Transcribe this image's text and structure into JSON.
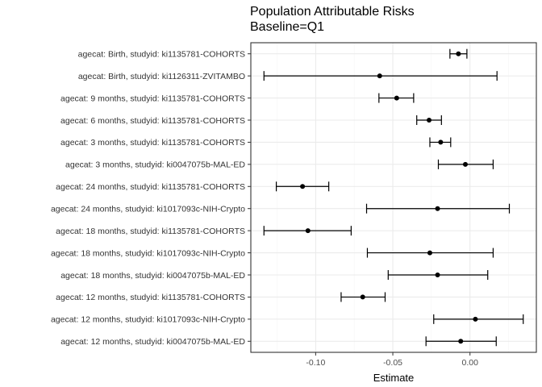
{
  "chart_data": {
    "type": "forest",
    "title": "Population Attributable Risks",
    "subtitle": "Baseline=Q1",
    "xlabel": "Estimate",
    "ylabel": "",
    "xlim": [
      -0.142,
      0.043
    ],
    "x_ticks": [
      -0.1,
      -0.05,
      0.0
    ],
    "x_tick_labels": [
      "-0.10",
      "-0.05",
      "0.00"
    ],
    "grid": true,
    "categories": [
      "agecat: Birth, studyid: ki1135781-COHORTS",
      "agecat: Birth, studyid: ki1126311-ZVITAMBO",
      "agecat: 9 months, studyid: ki1135781-COHORTS",
      "agecat: 6 months, studyid: ki1135781-COHORTS",
      "agecat: 3 months, studyid: ki1135781-COHORTS",
      "agecat: 3 months, studyid: ki0047075b-MAL-ED",
      "agecat: 24 months, studyid: ki1135781-COHORTS",
      "agecat: 24 months, studyid: ki1017093c-NIH-Crypto",
      "agecat: 18 months, studyid: ki1135781-COHORTS",
      "agecat: 18 months, studyid: ki1017093c-NIH-Crypto",
      "agecat: 18 months, studyid: ki0047075b-MAL-ED",
      "agecat: 12 months, studyid: ki1135781-COHORTS",
      "agecat: 12 months, studyid: ki1017093c-NIH-Crypto",
      "agecat: 12 months, studyid: ki0047075b-MAL-ED"
    ],
    "estimates": [
      -0.0075,
      -0.0585,
      -0.0475,
      -0.0265,
      -0.019,
      -0.003,
      -0.1085,
      -0.021,
      -0.105,
      -0.026,
      -0.021,
      -0.0695,
      0.0035,
      -0.006
    ],
    "ci_lower": [
      -0.013,
      -0.1335,
      -0.059,
      -0.0345,
      -0.026,
      -0.0205,
      -0.1255,
      -0.067,
      -0.1335,
      -0.0665,
      -0.053,
      -0.0835,
      -0.0235,
      -0.0285
    ],
    "ci_upper": [
      -0.002,
      0.0175,
      -0.0365,
      -0.0185,
      -0.0125,
      0.015,
      -0.0915,
      0.0255,
      -0.077,
      0.015,
      0.0115,
      -0.055,
      0.0345,
      0.017
    ],
    "point_color": "#000000",
    "panel_border_color": "#333333",
    "grid_major_color": "#ebebeb",
    "grid_minor_color": "#f5f5f5"
  }
}
